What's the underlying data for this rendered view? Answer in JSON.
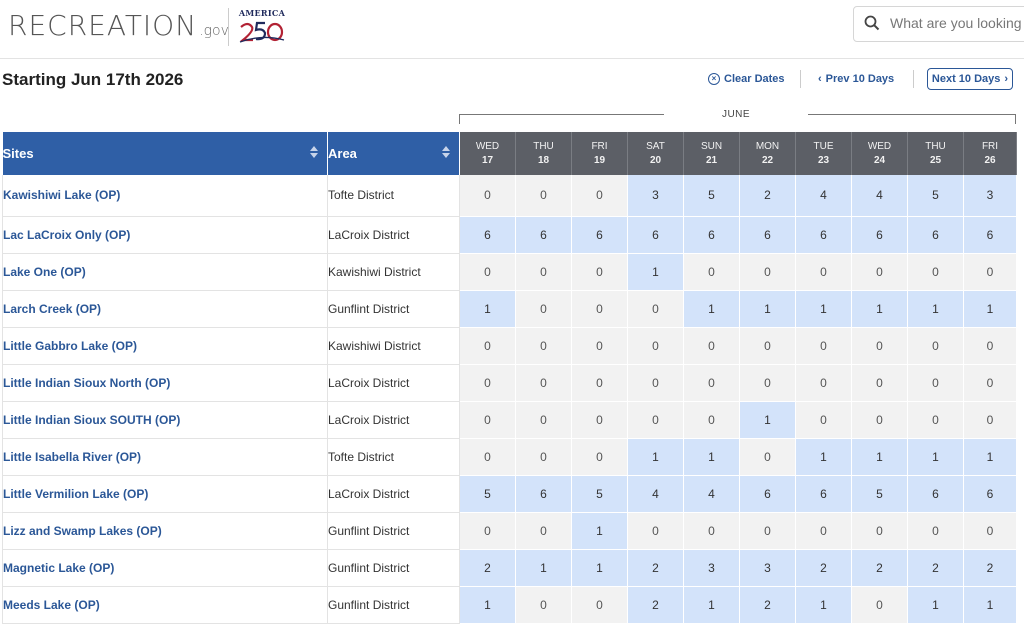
{
  "header": {
    "logo_text": "RECREATION",
    "logo_suffix": ".gov",
    "badge_text": "AMERICA",
    "badge_number": "250",
    "search_placeholder": "What are you looking for?"
  },
  "controls": {
    "starting_label": "Starting Jun 17th 2026",
    "clear_dates": "Clear Dates",
    "prev_label": "Prev 10 Days",
    "next_label": "Next 10 Days"
  },
  "month_label": "JUNE",
  "columns": {
    "sites": "Sites",
    "area": "Area"
  },
  "days": [
    {
      "dow": "WED",
      "date": "17"
    },
    {
      "dow": "THU",
      "date": "18"
    },
    {
      "dow": "FRI",
      "date": "19"
    },
    {
      "dow": "SAT",
      "date": "20"
    },
    {
      "dow": "SUN",
      "date": "21"
    },
    {
      "dow": "MON",
      "date": "22"
    },
    {
      "dow": "TUE",
      "date": "23"
    },
    {
      "dow": "WED",
      "date": "24"
    },
    {
      "dow": "THU",
      "date": "25"
    },
    {
      "dow": "FRI",
      "date": "26"
    }
  ],
  "rows": [
    {
      "site": "Kawishiwi Lake (OP)",
      "area": "Tofte District",
      "values": [
        "0",
        "0",
        "0",
        "3",
        "5",
        "2",
        "4",
        "4",
        "5",
        "3"
      ]
    },
    {
      "site": "Lac LaCroix Only (OP)",
      "area": "LaCroix District",
      "values": [
        "6",
        "6",
        "6",
        "6",
        "6",
        "6",
        "6",
        "6",
        "6",
        "6"
      ]
    },
    {
      "site": "Lake One (OP)",
      "area": "Kawishiwi District",
      "values": [
        "0",
        "0",
        "0",
        "1",
        "0",
        "0",
        "0",
        "0",
        "0",
        "0"
      ]
    },
    {
      "site": "Larch Creek (OP)",
      "area": "Gunflint District",
      "values": [
        "1",
        "0",
        "0",
        "0",
        "1",
        "1",
        "1",
        "1",
        "1",
        "1"
      ]
    },
    {
      "site": "Little Gabbro Lake (OP)",
      "area": "Kawishiwi District",
      "values": [
        "0",
        "0",
        "0",
        "0",
        "0",
        "0",
        "0",
        "0",
        "0",
        "0"
      ]
    },
    {
      "site": "Little Indian Sioux North (OP)",
      "area": "LaCroix District",
      "values": [
        "0",
        "0",
        "0",
        "0",
        "0",
        "0",
        "0",
        "0",
        "0",
        "0"
      ]
    },
    {
      "site": "Little Indian Sioux SOUTH (OP)",
      "area": "LaCroix District",
      "values": [
        "0",
        "0",
        "0",
        "0",
        "0",
        "1",
        "0",
        "0",
        "0",
        "0"
      ]
    },
    {
      "site": "Little Isabella River (OP)",
      "area": "Tofte District",
      "values": [
        "0",
        "0",
        "0",
        "1",
        "1",
        "0",
        "1",
        "1",
        "1",
        "1"
      ]
    },
    {
      "site": "Little Vermilion Lake (OP)",
      "area": "LaCroix District",
      "values": [
        "5",
        "6",
        "5",
        "4",
        "4",
        "6",
        "6",
        "5",
        "6",
        "6"
      ]
    },
    {
      "site": "Lizz and Swamp Lakes (OP)",
      "area": "Gunflint District",
      "values": [
        "0",
        "0",
        "1",
        "0",
        "0",
        "0",
        "0",
        "0",
        "0",
        "0"
      ]
    },
    {
      "site": "Magnetic Lake (OP)",
      "area": "Gunflint District",
      "values": [
        "2",
        "1",
        "1",
        "2",
        "3",
        "3",
        "2",
        "2",
        "2",
        "2"
      ]
    },
    {
      "site": "Meeds Lake (OP)",
      "area": "Gunflint District",
      "values": [
        "1",
        "0",
        "0",
        "2",
        "1",
        "2",
        "1",
        "0",
        "1",
        "1"
      ]
    }
  ],
  "colors": {
    "header_blue": "#2f5fa6",
    "day_header_gray": "#5c5f66",
    "available_cell": "#d3e3fa",
    "unavailable_cell": "#f2f2f2",
    "link_blue": "#2b5797"
  }
}
